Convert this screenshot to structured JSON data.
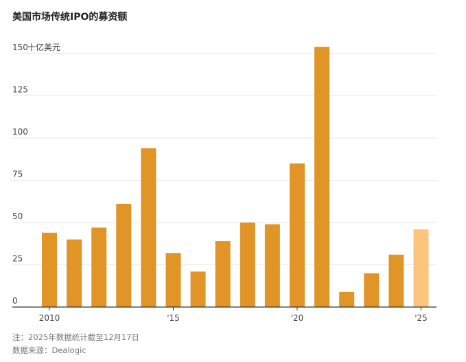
{
  "title": "美国市场传统IPO的募资额",
  "note": "注：2025年数据统计截至12月17日",
  "source": "数据来源：Dealogic",
  "chart_data": {
    "type": "bar",
    "title": "美国市场传统IPO的募资额",
    "ylabel": "十亿美元",
    "xlabel": "",
    "categories": [
      "2010",
      "2011",
      "2012",
      "2013",
      "2014",
      "2015",
      "2016",
      "2017",
      "2018",
      "2019",
      "2020",
      "2021",
      "2022",
      "2023",
      "2024",
      "2025"
    ],
    "values": [
      44,
      40,
      47,
      61,
      94,
      32,
      21,
      39,
      50,
      49,
      85,
      154,
      9,
      20,
      31,
      46
    ],
    "ylim": [
      0,
      155
    ],
    "yticks": [
      0,
      25,
      50,
      75,
      100,
      125,
      150
    ],
    "ytick_labels": [
      "0",
      "25",
      "50",
      "75",
      "100",
      "125",
      "150"
    ],
    "y_unit_label": "十亿美元",
    "xticks": [
      {
        "category": "2010",
        "label": "2010"
      },
      {
        "category": "2015",
        "label": "'15"
      },
      {
        "category": "2020",
        "label": "'20"
      },
      {
        "category": "2025",
        "label": "'25"
      }
    ],
    "highlight_category": "2025",
    "grid": true,
    "legend": "none",
    "colors": {
      "bar": "#E29527",
      "bar_highlight": "#FCC47C",
      "grid": "#E6E6E6",
      "axis": "#333333"
    }
  }
}
